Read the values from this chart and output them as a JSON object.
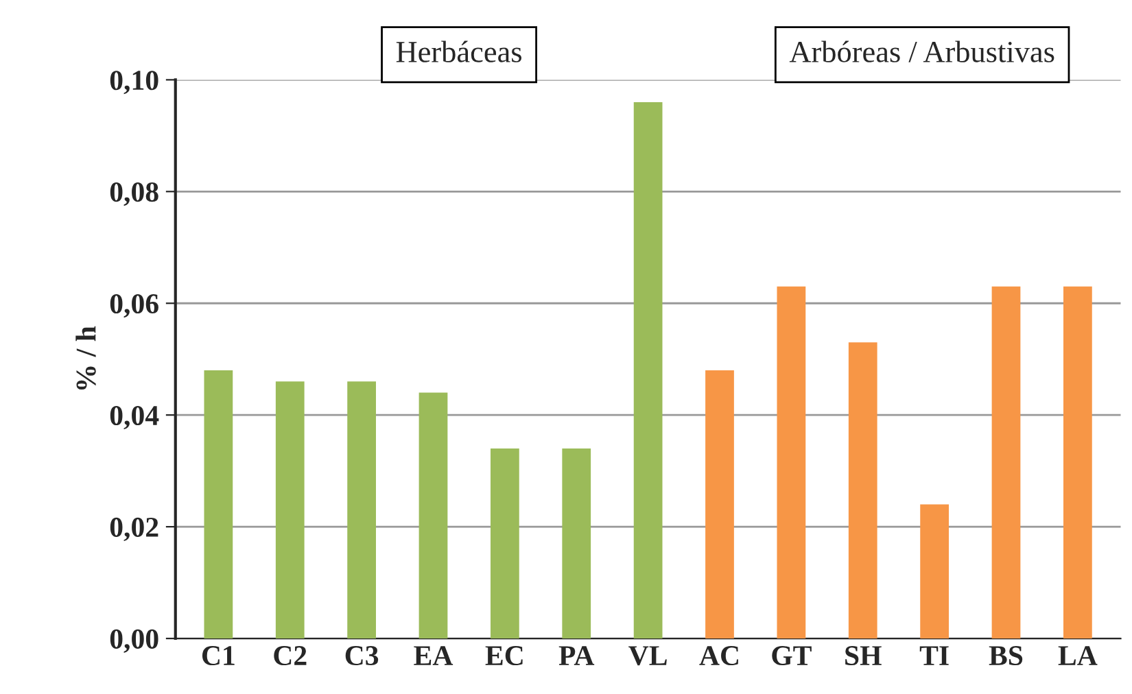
{
  "chart_data": {
    "type": "bar",
    "ylabel": "% / h",
    "categories": [
      "C1",
      "C2",
      "C3",
      "EA",
      "EC",
      "PA",
      "VL",
      "AC",
      "GT",
      "SH",
      "TI",
      "BS",
      "LA"
    ],
    "values": [
      0.048,
      0.046,
      0.046,
      0.044,
      0.034,
      0.034,
      0.096,
      0.048,
      0.063,
      0.053,
      0.024,
      0.063,
      0.063
    ],
    "colors": [
      "#9bbb59",
      "#9bbb59",
      "#9bbb59",
      "#9bbb59",
      "#9bbb59",
      "#9bbb59",
      "#9bbb59",
      "#f79646",
      "#f79646",
      "#f79646",
      "#f79646",
      "#f79646",
      "#f79646"
    ],
    "ylim": [
      0,
      0.1
    ],
    "yticks": [
      {
        "value": 0,
        "label": "0,00"
      },
      {
        "value": 0.02,
        "label": "0,02"
      },
      {
        "value": 0.04,
        "label": "0,04"
      },
      {
        "value": 0.06,
        "label": "0,06"
      },
      {
        "value": 0.08,
        "label": "0,08"
      },
      {
        "value": 0.1,
        "label": "0,10"
      }
    ],
    "grid": "y",
    "annotations": [
      "Herbáceas",
      "Arbóreas / Arbustivas"
    ]
  }
}
